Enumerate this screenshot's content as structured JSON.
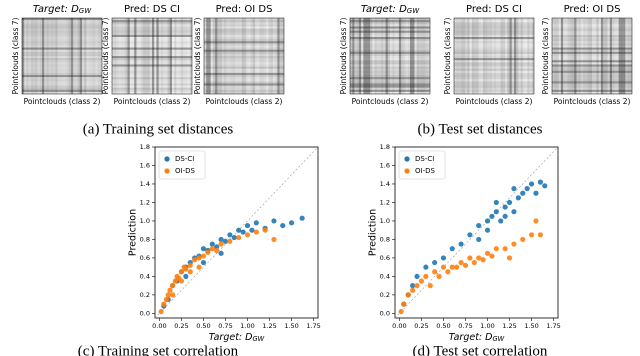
{
  "heatmaps": [
    {
      "title": "Target: D",
      "title_sub": "GW",
      "xlabel": "Pointclouds (class 2)",
      "ylabel": "Pointclouds (class 7)"
    },
    {
      "title": "Pred: DS CI",
      "xlabel": "Pointclouds (class 2)",
      "ylabel": "Pointclouds (class 7)"
    },
    {
      "title": "Pred: OI DS",
      "xlabel": "Pointclouds (class 2)",
      "ylabel": "Pointclouds (class 7)"
    },
    {
      "title": "Target: D",
      "title_sub": "GW",
      "xlabel": "Pointclouds (class 2)",
      "ylabel": "Pointclouds (class 7)"
    },
    {
      "title": "Pred: DS CI",
      "xlabel": "Pointclouds (class 2)",
      "ylabel": "Pointclouds (class 7)"
    },
    {
      "title": "Pred: OI DS",
      "xlabel": "Pointclouds (class 2)",
      "ylabel": "Pointclouds (class 7)"
    }
  ],
  "captions": [
    "(a) Training set distances",
    "(b) Test set distances",
    "(c) Training set correlation",
    "(d) Test set correlation"
  ],
  "chart_data": [
    {
      "type": "scatter",
      "xlabel": "Target: D",
      "xlabel_sub": "GW",
      "ylabel": "Prediction",
      "legend": "upper left",
      "xlim": [
        -0.05,
        1.8
      ],
      "ylim": [
        -0.05,
        1.8
      ],
      "xticks": [
        {
          "value": 0,
          "label": "0.00"
        },
        0.25,
        {
          "value": 0.5,
          "label": "0.50"
        },
        0.75,
        {
          "value": 1,
          "label": "1.00"
        },
        1.25,
        {
          "value": 1.5,
          "label": "1.50"
        },
        1.75
      ],
      "yticks": [
        {
          "value": 0,
          "label": "0.0"
        },
        0.2,
        0.4,
        0.6,
        0.8,
        {
          "value": 1,
          "label": "1.0"
        },
        1.2,
        1.4,
        1.6,
        1.8
      ],
      "series": [
        {
          "name": "DS-CI",
          "color": "#1f77b4",
          "x": [
            0.05,
            0.1,
            0.15,
            0.2,
            0.25,
            0.3,
            0.35,
            0.4,
            0.45,
            0.5,
            0.55,
            0.6,
            0.65,
            0.7,
            0.75,
            0.8,
            0.85,
            0.9,
            0.95,
            1.0,
            1.05,
            1.1,
            1.2,
            1.3,
            1.4,
            1.5,
            1.62,
            0.3,
            0.5,
            0.7
          ],
          "values": [
            0.08,
            0.15,
            0.3,
            0.35,
            0.45,
            0.5,
            0.55,
            0.6,
            0.62,
            0.7,
            0.68,
            0.75,
            0.72,
            0.8,
            0.78,
            0.85,
            0.82,
            0.9,
            0.88,
            0.95,
            0.9,
            0.98,
            0.92,
            1.0,
            0.95,
            0.98,
            1.03,
            0.4,
            0.55,
            0.65
          ]
        },
        {
          "name": "OI-DS",
          "color": "#ff7f0e",
          "x": [
            0.02,
            0.05,
            0.08,
            0.1,
            0.12,
            0.15,
            0.18,
            0.2,
            0.22,
            0.25,
            0.28,
            0.3,
            0.35,
            0.4,
            0.45,
            0.5,
            0.55,
            0.6,
            0.65,
            0.7,
            0.8,
            0.9,
            1.0,
            1.1,
            1.2,
            1.3,
            0.15,
            0.25,
            0.35,
            0.45
          ],
          "values": [
            0.02,
            0.1,
            0.15,
            0.2,
            0.25,
            0.3,
            0.35,
            0.4,
            0.38,
            0.45,
            0.5,
            0.48,
            0.52,
            0.58,
            0.6,
            0.62,
            0.66,
            0.7,
            0.68,
            0.75,
            0.78,
            0.82,
            0.85,
            0.88,
            0.9,
            0.8,
            0.2,
            0.35,
            0.45,
            0.5
          ]
        }
      ]
    },
    {
      "type": "scatter",
      "xlabel": "Target: D",
      "xlabel_sub": "GW",
      "ylabel": "Prediction",
      "legend": "upper left",
      "xlim": [
        -0.05,
        1.8
      ],
      "ylim": [
        -0.05,
        1.8
      ],
      "xticks": [
        {
          "value": 0,
          "label": "0.00"
        },
        0.25,
        {
          "value": 0.5,
          "label": "0.50"
        },
        0.75,
        {
          "value": 1,
          "label": "1.00"
        },
        1.25,
        {
          "value": 1.5,
          "label": "1.50"
        },
        1.75
      ],
      "yticks": [
        {
          "value": 0,
          "label": "0.0"
        },
        0.2,
        0.4,
        0.6,
        0.8,
        {
          "value": 1,
          "label": "1.0"
        },
        1.2,
        1.4,
        1.6,
        1.8
      ],
      "series": [
        {
          "name": "DS-CI",
          "color": "#1f77b4",
          "x": [
            0.05,
            0.1,
            0.15,
            0.2,
            0.3,
            0.4,
            0.5,
            0.6,
            0.7,
            0.8,
            0.9,
            1.0,
            1.05,
            1.1,
            1.15,
            1.2,
            1.25,
            1.3,
            1.35,
            1.4,
            1.45,
            1.5,
            1.55,
            1.6,
            1.65,
            1.0,
            1.1,
            1.2,
            1.3,
            0.9
          ],
          "values": [
            0.1,
            0.2,
            0.3,
            0.4,
            0.5,
            0.55,
            0.6,
            0.7,
            0.75,
            0.85,
            0.95,
            1.0,
            1.05,
            1.1,
            1.0,
            1.15,
            1.2,
            1.1,
            1.25,
            1.3,
            1.35,
            1.4,
            1.3,
            1.42,
            1.38,
            0.9,
            1.2,
            1.05,
            1.35,
            0.8
          ]
        },
        {
          "name": "OI-DS",
          "color": "#ff7f0e",
          "x": [
            0.02,
            0.05,
            0.1,
            0.15,
            0.2,
            0.25,
            0.3,
            0.4,
            0.5,
            0.6,
            0.7,
            0.8,
            0.9,
            1.0,
            1.1,
            1.2,
            1.3,
            1.4,
            1.5,
            1.55,
            1.6,
            0.35,
            0.45,
            0.55,
            0.65,
            0.75,
            0.85,
            0.95,
            1.05,
            1.25
          ],
          "values": [
            0.02,
            0.1,
            0.2,
            0.25,
            0.3,
            0.35,
            0.4,
            0.45,
            0.5,
            0.5,
            0.55,
            0.6,
            0.6,
            0.65,
            0.7,
            0.7,
            0.75,
            0.8,
            0.85,
            1.0,
            0.85,
            0.3,
            0.4,
            0.45,
            0.5,
            0.52,
            0.55,
            0.58,
            0.62,
            0.6
          ]
        }
      ]
    }
  ]
}
